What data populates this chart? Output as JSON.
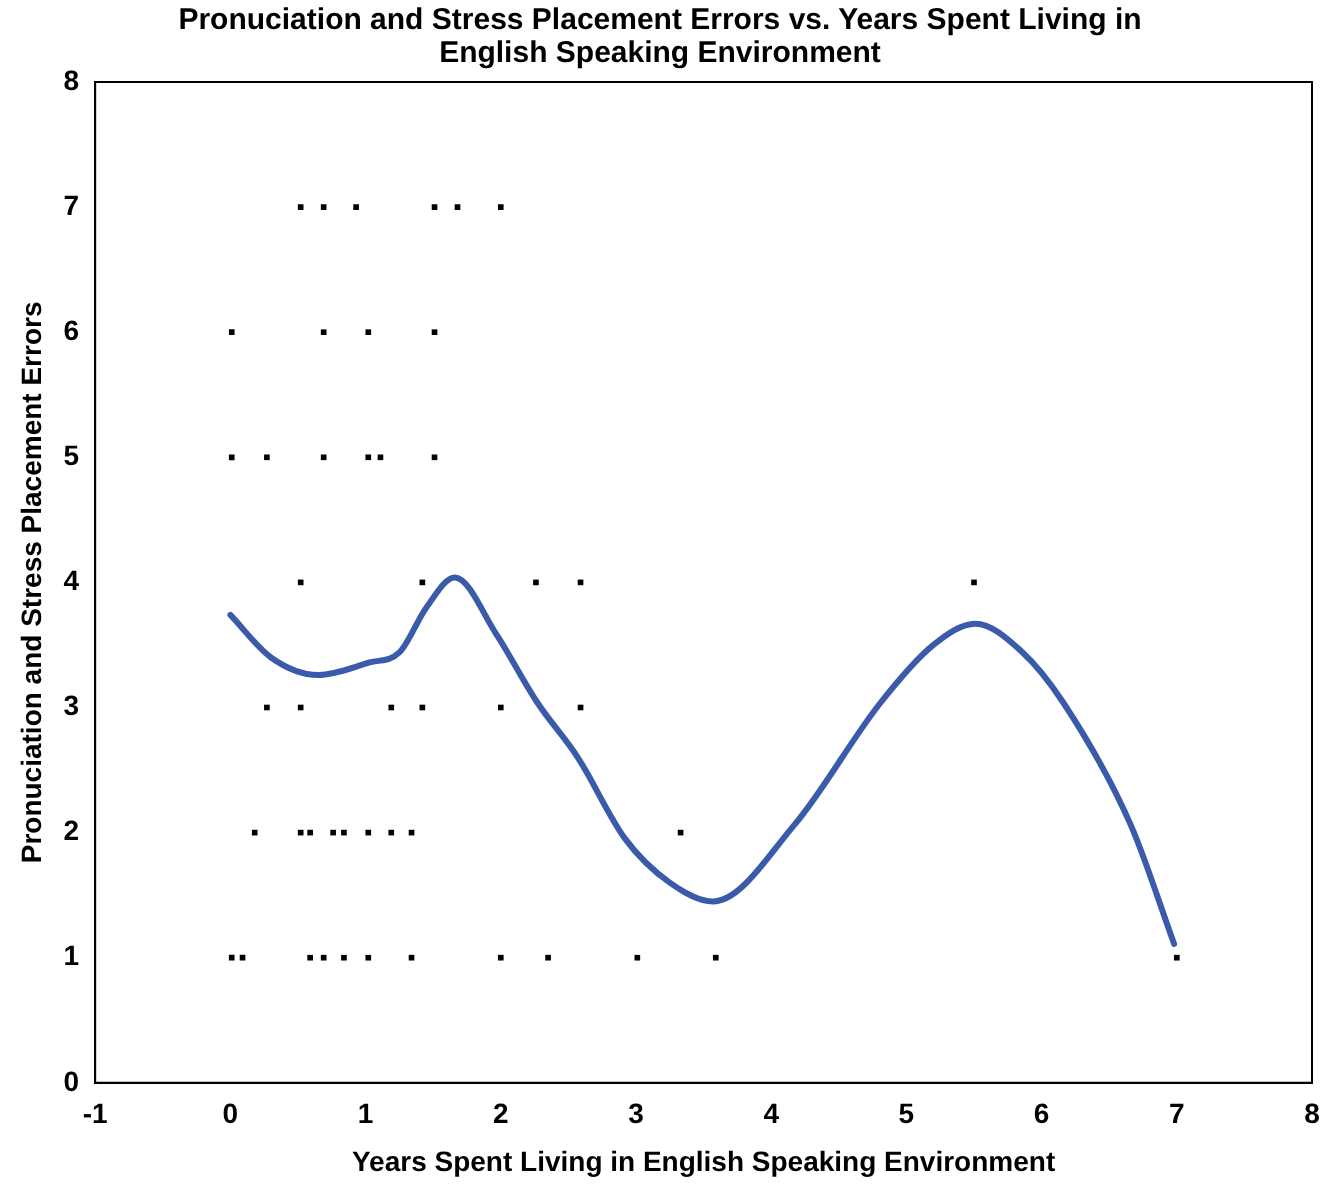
{
  "chart_data": {
    "type": "scatter",
    "title": "Pronuciation and Stress Placement Errors vs. Years Spent Living in English Speaking Environment",
    "xlabel": "Years Spent Living in English Speaking Environment",
    "ylabel": "Pronuciation and Stress Placement Errors",
    "xlim": [
      -1,
      8
    ],
    "xticks": [
      -1,
      0,
      1,
      2,
      3,
      4,
      5,
      6,
      7,
      8
    ],
    "ylim": [
      0,
      8
    ],
    "yticks": [
      0,
      1,
      2,
      3,
      4,
      5,
      6,
      7,
      8
    ],
    "grid": false,
    "legend": false,
    "series": [
      {
        "type": "scatter",
        "marker": "square",
        "color": "#000000",
        "x": [
          0.52,
          0.69,
          0.93,
          1.51,
          1.68,
          2.0,
          0.01,
          0.69,
          1.02,
          1.51,
          0.01,
          0.27,
          0.69,
          1.02,
          1.11,
          1.51,
          0.52,
          1.42,
          2.26,
          2.59,
          5.5,
          0.27,
          0.52,
          1.19,
          1.42,
          2.0,
          2.59,
          0.18,
          0.52,
          0.59,
          0.76,
          0.84,
          1.02,
          1.19,
          1.34,
          3.33,
          0.01,
          0.09,
          0.59,
          0.69,
          0.84,
          1.02,
          1.34,
          2.0,
          2.35,
          3.01,
          3.59,
          7.0
        ],
        "values": [
          7,
          7,
          7,
          7,
          7,
          7,
          6,
          6,
          6,
          6,
          5,
          5,
          5,
          5,
          5,
          5,
          4,
          4,
          4,
          4,
          4,
          3,
          3,
          3,
          3,
          3,
          3,
          2,
          2,
          2,
          2,
          2,
          2,
          2,
          2,
          2,
          1,
          1,
          1,
          1,
          1,
          1,
          1,
          1,
          1,
          1,
          1,
          1
        ]
      },
      {
        "type": "line",
        "marker": "none",
        "color": "#3a5ba9",
        "x": [
          0.0,
          0.3,
          0.65,
          1.03,
          1.25,
          1.45,
          1.66,
          1.97,
          2.27,
          2.57,
          2.92,
          3.25,
          3.57,
          4.17,
          4.81,
          5.2,
          5.51,
          5.85,
          6.16,
          6.66,
          6.98
        ],
        "values": [
          3.74,
          3.4,
          3.26,
          3.36,
          3.44,
          3.8,
          4.04,
          3.58,
          3.04,
          2.6,
          1.95,
          1.6,
          1.45,
          2.06,
          3.04,
          3.5,
          3.67,
          3.45,
          3.04,
          2.06,
          1.11
        ]
      }
    ]
  }
}
